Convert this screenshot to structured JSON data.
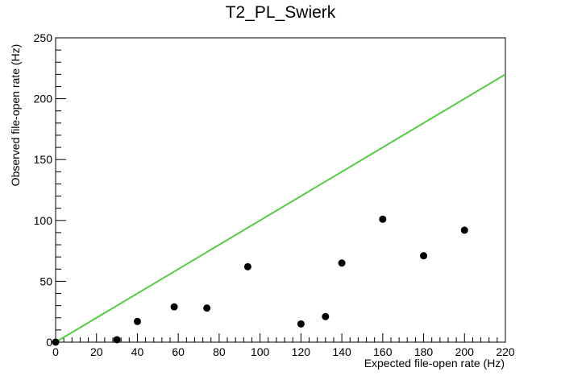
{
  "chart_data": {
    "type": "scatter",
    "title": "T2_PL_Swierk",
    "xlabel": "Expected file-open rate (Hz)",
    "ylabel": "Observed file-open rate (Hz)",
    "xlim": [
      0,
      220
    ],
    "ylim": [
      0,
      250
    ],
    "x_ticks": [
      0,
      20,
      40,
      60,
      80,
      100,
      120,
      140,
      160,
      180,
      200,
      220
    ],
    "y_ticks": [
      0,
      50,
      100,
      150,
      200,
      250
    ],
    "grid": false,
    "series": [
      {
        "type": "scatter",
        "color": "#000000",
        "points": [
          [
            0,
            0
          ],
          [
            30,
            2
          ],
          [
            40,
            17
          ],
          [
            58,
            29
          ],
          [
            74,
            28
          ],
          [
            94,
            62
          ],
          [
            120,
            15
          ],
          [
            132,
            21
          ],
          [
            140,
            65
          ],
          [
            160,
            101
          ],
          [
            180,
            71
          ],
          [
            200,
            92
          ]
        ]
      },
      {
        "type": "line",
        "color": "#55cc44",
        "points": [
          [
            0,
            0
          ],
          [
            220,
            220
          ]
        ]
      }
    ]
  }
}
